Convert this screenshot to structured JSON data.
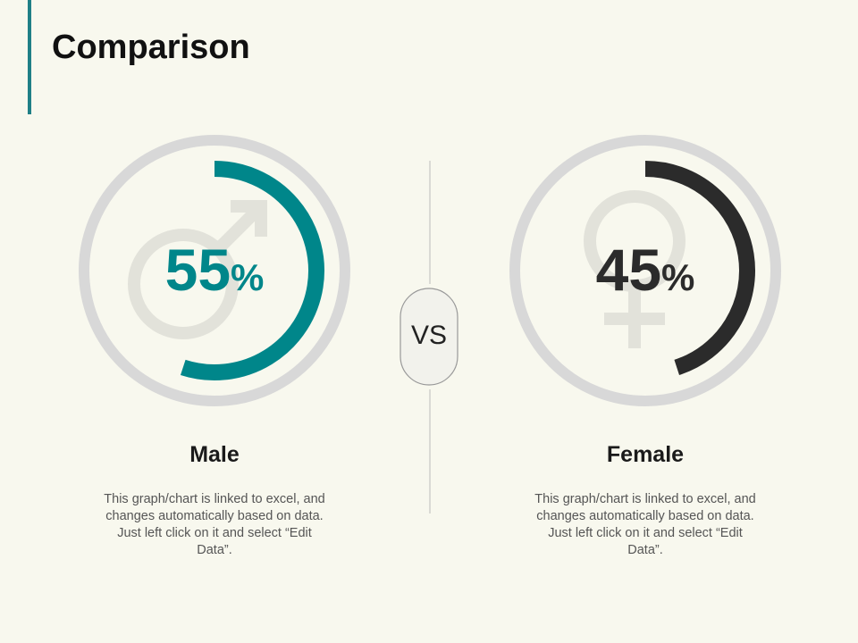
{
  "title": "Comparison",
  "vs": "VS",
  "chart_data": [
    {
      "type": "gauge",
      "name": "Male",
      "value": 55,
      "value_label": "55%",
      "ylim": [
        0,
        100
      ],
      "color": "#00868a",
      "description": "This graph/chart is linked to excel, and changes automatically based on data. Just left click on it and select “Edit Data”."
    },
    {
      "type": "gauge",
      "name": "Female",
      "value": 45,
      "value_label": "45%",
      "ylim": [
        0,
        100
      ],
      "color": "#2b2b2b",
      "description": "This graph/chart is linked to excel, and changes automatically based on data. Just left click on it and select “Edit Data”."
    }
  ]
}
